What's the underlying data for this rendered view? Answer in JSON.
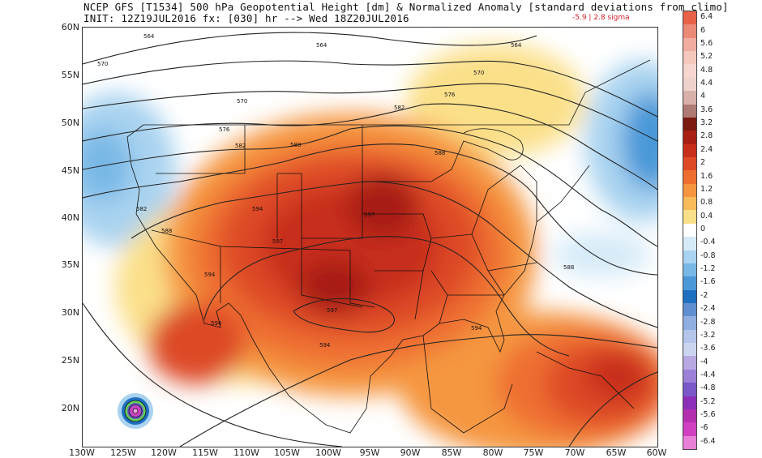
{
  "header": {
    "line1": "NCEP GFS [T1534] 500 hPa Geopotential Height [dm] & Normalized Anomaly [standard deviations from climo]",
    "line2": "INIT: 12Z19JUL2016 fx: [030] hr --> Wed 18Z20JUL2016",
    "range_note": "-5.9 | 2.8 sigma"
  },
  "axes": {
    "lat_labels": [
      "60N",
      "55N",
      "50N",
      "45N",
      "40N",
      "35N",
      "30N",
      "25N",
      "20N"
    ],
    "lon_labels": [
      "130W",
      "125W",
      "120W",
      "115W",
      "110W",
      "105W",
      "100W",
      "95W",
      "90W",
      "85W",
      "80W",
      "75W",
      "70W",
      "65W",
      "60W"
    ]
  },
  "colorbar": {
    "labels": [
      "6.4",
      "6",
      "5.6",
      "5.2",
      "4.8",
      "4.4",
      "4",
      "3.6",
      "3.2",
      "2.8",
      "2.4",
      "2",
      "1.6",
      "1.2",
      "0.8",
      "0.4",
      "0",
      "-0.4",
      "-0.8",
      "-1.2",
      "-1.6",
      "-2",
      "-2.4",
      "-2.8",
      "-3.2",
      "-3.6",
      "-4",
      "-4.4",
      "-4.8",
      "-5.2",
      "-5.6",
      "-6",
      "-6.4"
    ],
    "colors": [
      "#e8624a",
      "#ec8a78",
      "#f1ada0",
      "#f5c8bd",
      "#f6d6cf",
      "#efd2cc",
      "#d8b0aa",
      "#b07a74",
      "#7a1a12",
      "#a81f14",
      "#c82f1a",
      "#dd4a25",
      "#ee6e30",
      "#f5963f",
      "#f8bb58",
      "#fbe08a",
      "#ffffff",
      "#d6ebf8",
      "#a9d3f0",
      "#78b8e6",
      "#4a98d8",
      "#1f6fc0",
      "#5f8fd0",
      "#90aee0",
      "#b3c5ea",
      "#cbd5f0",
      "#b9a9e2",
      "#9a80d6",
      "#7a58c8",
      "#8c2fb8",
      "#b42fb0",
      "#d040c0",
      "#e880d8"
    ]
  },
  "map": {
    "contour_labels": [
      "564",
      "570",
      "576",
      "582",
      "588",
      "594",
      "597"
    ],
    "colors": {
      "strong_positive": "#a81f14",
      "positive": "#e04a25",
      "weak_positive": "#f5963f",
      "slight_positive": "#fbe08a",
      "negative": "#a9d3f0",
      "strong_negative": "#4a98d8",
      "contour": "#222222"
    }
  }
}
